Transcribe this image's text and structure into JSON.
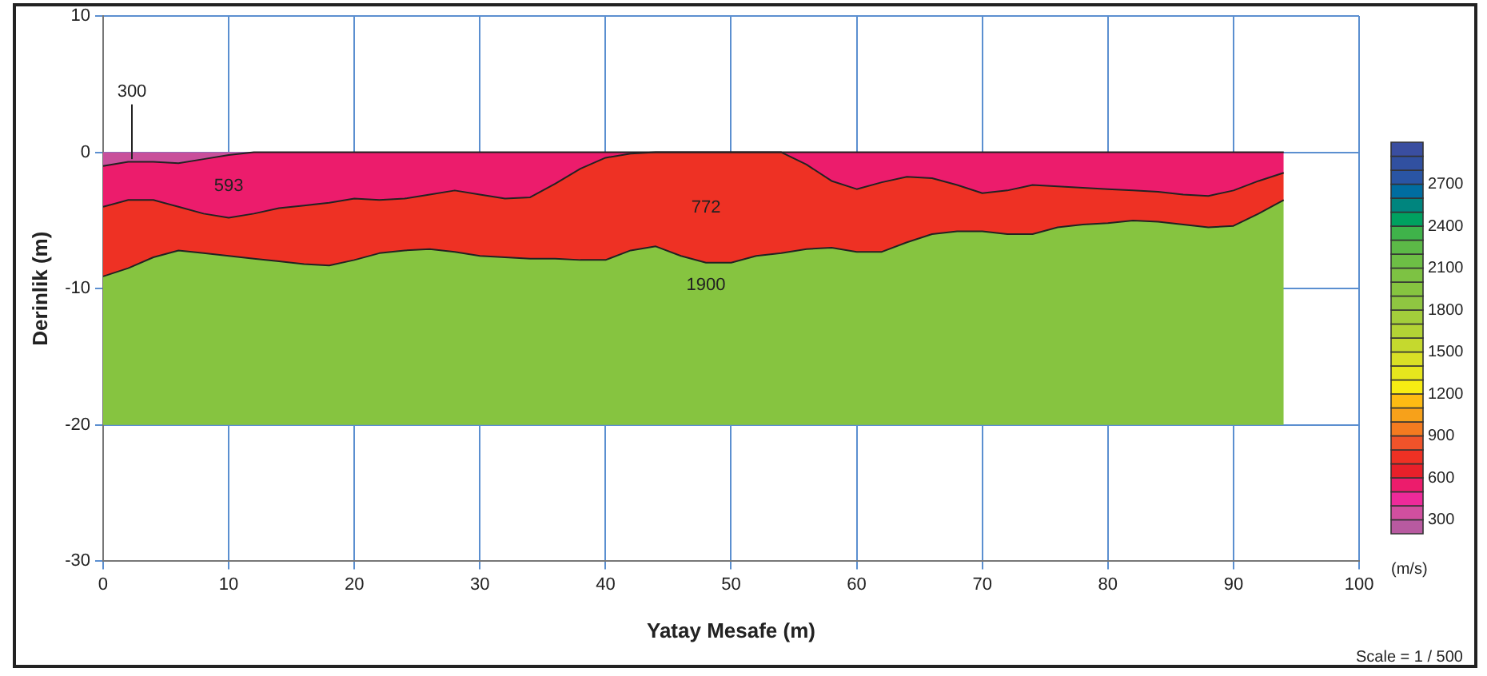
{
  "chart_data": {
    "type": "area",
    "stacked": true,
    "xlabel": "Yatay Mesafe (m)",
    "ylabel": "Derinlik (m)",
    "clabel": "(m/s)",
    "clim": [
      200,
      3000
    ],
    "cticks": [
      300,
      600,
      900,
      1200,
      1500,
      1800,
      2100,
      2400,
      2700
    ],
    "x": [
      0,
      2,
      4,
      6,
      8,
      10,
      12,
      14,
      16,
      18,
      20,
      22,
      24,
      26,
      28,
      30,
      32,
      34,
      36,
      38,
      40,
      42,
      44,
      46,
      48,
      50,
      52,
      54,
      56,
      58,
      60,
      62,
      64,
      66,
      68,
      70,
      72,
      74,
      76,
      78,
      80,
      82,
      84,
      86,
      88,
      90,
      92,
      94
    ],
    "series": [
      {
        "name": "300",
        "color": "#c94f9b",
        "values": [
          -1.0,
          -0.7,
          -0.7,
          -0.8,
          -0.5,
          -0.2,
          0,
          0,
          0,
          0,
          0,
          0,
          0,
          0,
          0,
          0,
          0,
          0,
          0,
          0,
          0,
          0,
          0,
          0,
          0,
          0,
          0,
          0,
          0,
          0,
          0,
          0,
          0,
          0,
          0,
          0,
          0,
          0,
          0,
          0,
          0,
          0,
          0,
          0,
          0,
          0,
          0,
          0
        ]
      },
      {
        "name": "593",
        "color": "#ec1c6c",
        "values": [
          -3.0,
          -2.8,
          -2.8,
          -3.2,
          -4.0,
          -4.6,
          -4.5,
          -4.1,
          -3.9,
          -3.7,
          -3.4,
          -3.5,
          -3.4,
          -3.1,
          -2.8,
          -3.1,
          -3.4,
          -3.3,
          -2.3,
          -1.2,
          -0.4,
          -0.1,
          0,
          0,
          0,
          0,
          0,
          0,
          -0.9,
          -2.1,
          -2.7,
          -2.2,
          -1.8,
          -1.9,
          -2.4,
          -3.0,
          -2.8,
          -2.4,
          -2.5,
          -2.6,
          -2.7,
          -2.8,
          -2.9,
          -3.1,
          -3.2,
          -2.8,
          -2.1,
          -1.5
        ]
      },
      {
        "name": "772",
        "color": "#ee3124",
        "values": [
          -5.1,
          -5.0,
          -4.2,
          -3.2,
          -2.9,
          -2.8,
          -3.3,
          -3.9,
          -4.3,
          -4.6,
          -4.5,
          -3.9,
          -3.8,
          -4.0,
          -4.5,
          -4.5,
          -4.3,
          -4.5,
          -5.5,
          -6.7,
          -7.5,
          -7.1,
          -6.9,
          -7.6,
          -8.1,
          -8.1,
          -7.6,
          -7.4,
          -6.2,
          -4.9,
          -4.6,
          -5.1,
          -4.8,
          -4.1,
          -3.4,
          -2.8,
          -3.2,
          -3.6,
          -3.0,
          -2.7,
          -2.5,
          -2.2,
          -2.2,
          -2.2,
          -2.3,
          -2.6,
          -2.4,
          -2.0
        ]
      },
      {
        "name": "1900",
        "color": "#86c440",
        "values": [
          -10.9,
          -11.5,
          -12.3,
          -12.8,
          -12.6,
          -12.4,
          -12.2,
          -12.0,
          -11.8,
          -11.7,
          -12.1,
          -12.6,
          -12.8,
          -12.9,
          -12.7,
          -12.4,
          -12.3,
          -12.2,
          -12.2,
          -12.1,
          -12.1,
          -12.8,
          -13.1,
          -12.4,
          -11.9,
          -11.9,
          -12.4,
          -12.6,
          -12.9,
          -13.0,
          -12.7,
          -12.7,
          -13.4,
          -14.0,
          -14.2,
          -14.2,
          -14.0,
          -14.0,
          -14.5,
          -14.7,
          -14.8,
          -15.0,
          -14.9,
          -14.7,
          -14.5,
          -14.6,
          -15.5,
          -16.5
        ]
      }
    ],
    "xlim": [
      0,
      100
    ],
    "xticks": [
      0,
      10,
      20,
      30,
      40,
      50,
      60,
      70,
      80,
      90,
      100
    ],
    "ylim": [
      -30,
      10
    ],
    "yticks": [
      10,
      0,
      -10,
      -20,
      -30
    ],
    "grid": true,
    "legend": false,
    "annotations": [
      "Scale = 1 / 500"
    ]
  }
}
